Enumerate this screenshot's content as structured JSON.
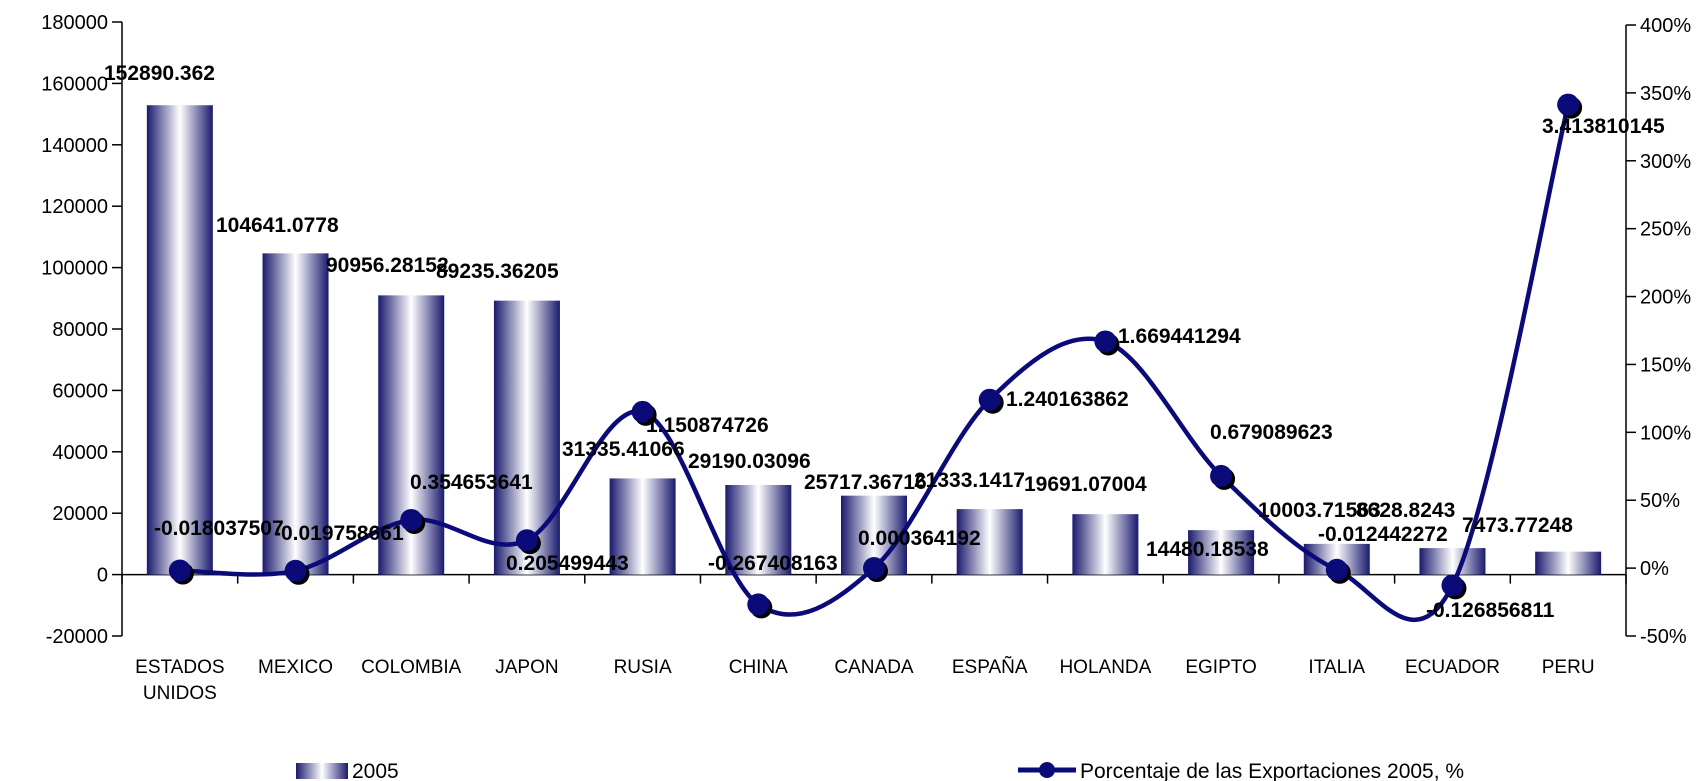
{
  "chart_data": {
    "type": "bar",
    "categories": [
      "ESTADOS UNIDOS",
      "MEXICO",
      "COLOMBIA",
      "JAPON",
      "RUSIA",
      "CHINA",
      "CANADA",
      "ESPAÑA",
      "HOLANDA",
      "EGIPTO",
      "ITALIA",
      "ECUADOR",
      "PERU"
    ],
    "category_lines": [
      [
        "ESTADOS",
        "UNIDOS"
      ],
      [
        "MEXICO"
      ],
      [
        "COLOMBIA"
      ],
      [
        "JAPON"
      ],
      [
        "RUSIA"
      ],
      [
        "CHINA"
      ],
      [
        "CANADA"
      ],
      [
        "ESPAÑA"
      ],
      [
        "HOLANDA"
      ],
      [
        "EGIPTO"
      ],
      [
        "ITALIA"
      ],
      [
        "ECUADOR"
      ],
      [
        "PERU"
      ]
    ],
    "series": [
      {
        "name": "2005",
        "type": "bar",
        "axis": "left",
        "values": [
          152890.362,
          104641.0778,
          90956.28152,
          89235.36205,
          31335.41066,
          29190.03096,
          25717.36716,
          21333.1417,
          19691.07004,
          14480.18538,
          10003.71563,
          8628.8243,
          7473.77248
        ],
        "labels": [
          "152890.362",
          "104641.0778",
          "90956.28152",
          "89235.36205",
          "31335.41066",
          "29190.03096",
          "25717.36716",
          "21333.1417",
          "19691.07004",
          "14480.18538",
          "10003.71563",
          "8628.8243",
          "7473.77248"
        ]
      },
      {
        "name": "Porcentaje de las Exportaciones 2005, %",
        "type": "line",
        "axis": "right",
        "values": [
          -0.018037507,
          -0.019758661,
          0.354653641,
          0.205499443,
          1.150874726,
          -0.267408163,
          0.000364192,
          1.240163862,
          1.669441294,
          0.679089623,
          -0.012442272,
          -0.126856811,
          3.413810145
        ],
        "labels": [
          "-0.018037507",
          "-0.019758661",
          "0.354653641",
          "0.205499443",
          "1.150874726",
          "-0.267408163",
          "0.000364192",
          "1.240163862",
          "1.669441294",
          "0.679089623",
          "-0.012442272",
          "-0.126856811",
          "3.413810145"
        ]
      }
    ],
    "left_axis": {
      "ylim": [
        -20000,
        180000
      ],
      "ticks": [
        180000,
        160000,
        140000,
        120000,
        100000,
        80000,
        60000,
        40000,
        20000,
        0,
        -20000
      ],
      "tick_labels": [
        "180000",
        "160000",
        "140000",
        "120000",
        "100000",
        "80000",
        "60000",
        "40000",
        "20000",
        "0",
        "-20000"
      ]
    },
    "right_axis": {
      "ylim": [
        -0.5,
        4.0
      ],
      "ticks": [
        4.0,
        3.5,
        3.0,
        2.5,
        2.0,
        1.5,
        1.0,
        0.5,
        0,
        -0.5
      ],
      "tick_labels": [
        "400%",
        "350%",
        "300%",
        "250%",
        "200%",
        "150%",
        "100%",
        "50%",
        "0%",
        "-50%"
      ]
    },
    "grid": false,
    "legend_position": "bottom",
    "colors": {
      "bar_dark": "#1a1a6e",
      "bar_light": "#ffffff",
      "line": "#0a0a78",
      "marker": "#0a0a78"
    }
  }
}
